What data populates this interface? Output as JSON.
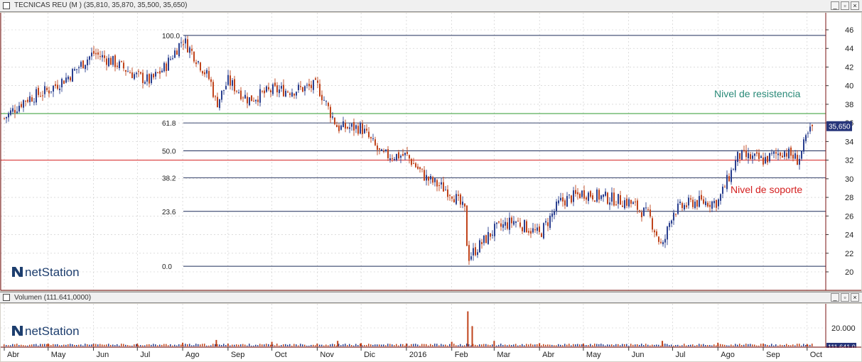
{
  "window": {
    "title": "TECNICAS REU (M ) (35,810, 35,870, 35,500, 35,650)",
    "volume_title": "Volumen (111.641,0000)"
  },
  "logo": {
    "text": "netStation"
  },
  "annotations": {
    "resistance_label": "Nivel de resistencia",
    "support_label": "Nivel de soporte",
    "resistance_value": 37.0,
    "support_value": 32.0,
    "resistance_color": "#2a8a78",
    "support_color": "#d42020"
  },
  "fibonacci": [
    {
      "label": "100.0",
      "value": 45.4
    },
    {
      "label": "61.8",
      "value": 36.0
    },
    {
      "label": "50.0",
      "value": 33.0
    },
    {
      "label": "38.2",
      "value": 30.1
    },
    {
      "label": "23.6",
      "value": 26.5
    },
    {
      "label": "0.0",
      "value": 20.6
    }
  ],
  "last_price_tag": "35,650",
  "volume_tick_label": "20.000",
  "volume_last_tag": "111.641,0",
  "colors": {
    "up": "#2a3f8f",
    "down": "#c0441c",
    "frame": "#7a1010",
    "grid": "#c8c8c8",
    "fib_line": "#1f2d5a",
    "tag_bg": "#26357a"
  },
  "chart_data": [
    {
      "type": "line",
      "title": "TECNICAS REU (M ) (35,810, 35,870, 35,500, 35,650)",
      "xlabel": "",
      "ylabel": "",
      "ylim": [
        19,
        47
      ],
      "yticks": [
        20,
        22,
        24,
        26,
        28,
        30,
        32,
        34,
        36,
        38,
        40,
        42,
        44,
        46
      ],
      "x_labels": [
        "Abr",
        "May",
        "Jun",
        "Jul",
        "Ago",
        "Sep",
        "Oct",
        "Nov",
        "Dic",
        "2016",
        "Feb",
        "Mar",
        "Abr",
        "May",
        "Jun",
        "Jul",
        "Ago",
        "Sep",
        "Oct"
      ],
      "x": [
        "2015-04-01",
        "2015-04-15",
        "2015-05-01",
        "2015-05-15",
        "2015-06-01",
        "2015-06-15",
        "2015-07-01",
        "2015-07-10",
        "2015-07-20",
        "2015-08-01",
        "2015-08-10",
        "2015-08-20",
        "2015-08-24",
        "2015-09-01",
        "2015-09-15",
        "2015-10-01",
        "2015-10-15",
        "2015-11-01",
        "2015-11-15",
        "2015-11-25",
        "2015-12-01",
        "2015-12-15",
        "2016-01-01",
        "2016-01-15",
        "2016-02-01",
        "2016-02-10",
        "2016-02-12",
        "2016-03-01",
        "2016-03-15",
        "2016-04-01",
        "2016-04-15",
        "2016-05-01",
        "2016-05-15",
        "2016-06-01",
        "2016-06-15",
        "2016-06-24",
        "2016-07-01",
        "2016-07-15",
        "2016-08-01",
        "2016-08-15",
        "2016-09-01",
        "2016-09-15",
        "2016-09-25",
        "2016-10-01",
        "2016-10-05"
      ],
      "series": [
        {
          "values": [
            36.5,
            38.5,
            39.5,
            41.0,
            43.5,
            42.5,
            41.0,
            40.5,
            42.0,
            45.0,
            43.0,
            40.5,
            38.0,
            40.5,
            38.5,
            39.5,
            39.5,
            40.0,
            35.5,
            35.5,
            35.5,
            32.5,
            32.5,
            30.0,
            28.5,
            26.5,
            21.5,
            24.5,
            25.5,
            24.0,
            27.5,
            28.5,
            28.0,
            27.5,
            26.0,
            22.5,
            26.5,
            27.5,
            27.5,
            32.5,
            32.0,
            33.0,
            32.0,
            34.5,
            35.65
          ]
        }
      ]
    },
    {
      "type": "bar",
      "title": "Volumen (111.641,0000)",
      "xlabel": "",
      "ylabel": "",
      "ylim": [
        0,
        40000
      ],
      "yticks": [
        20000
      ],
      "x_labels": [
        "Abr",
        "May",
        "Jun",
        "Jul",
        "Ago",
        "Sep",
        "Oct",
        "Nov",
        "Dic",
        "2016",
        "Feb",
        "Mar",
        "Abr",
        "May",
        "Jun",
        "Jul",
        "Ago",
        "Sep",
        "Oct"
      ],
      "x": [
        "2015-05-01",
        "2015-06-01",
        "2015-07-01",
        "2015-08-01",
        "2015-08-24",
        "2015-09-01",
        "2015-10-01",
        "2015-11-01",
        "2015-11-15",
        "2015-12-01",
        "2016-01-01",
        "2016-02-01",
        "2016-02-12",
        "2016-02-15",
        "2016-03-01",
        "2016-04-01",
        "2016-05-01",
        "2016-06-24",
        "2016-08-01",
        "2016-09-01",
        "2016-10-01"
      ],
      "values": [
        3000,
        2500,
        3000,
        4000,
        7000,
        3000,
        5000,
        3000,
        6000,
        3500,
        3000,
        5000,
        38000,
        22000,
        6000,
        3500,
        3000,
        6000,
        4000,
        3000,
        2500
      ]
    }
  ]
}
